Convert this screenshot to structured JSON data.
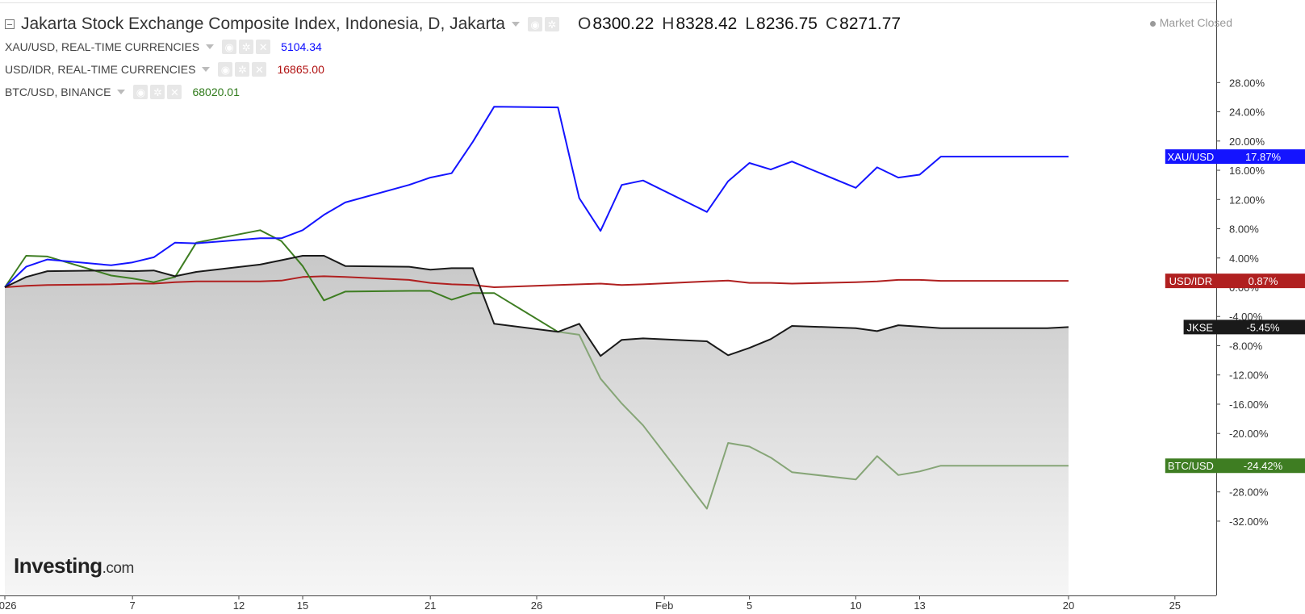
{
  "header": {
    "title": "Jakarta Stock Exchange Composite Index, Indonesia, D, Jakarta",
    "ohlc": [
      {
        "k": "O",
        "v": "8300.22"
      },
      {
        "k": "H",
        "v": "8328.42"
      },
      {
        "k": "L",
        "v": "8236.75"
      },
      {
        "k": "C",
        "v": "8271.77"
      }
    ],
    "market_status": "Market Closed"
  },
  "legend": [
    {
      "name": "XAU/USD, REAL-TIME CURRENCIES",
      "value": "5104.34",
      "color": "#0a0aff"
    },
    {
      "name": "USD/IDR, REAL-TIME CURRENCIES",
      "value": "16865.00",
      "color": "#b01010"
    },
    {
      "name": "BTC/USD, BINANCE",
      "value": "68020.01",
      "color": "#2f7a1a"
    }
  ],
  "logo": {
    "brand": "Investing",
    "suffix": ".com"
  },
  "colors": {
    "xau": "#1414ff",
    "usdidr": "#b02020",
    "btc_early": "#3e7d22",
    "btc_late": "#86a577",
    "jkse": "#1a1a1a",
    "axis": "#444444",
    "area_top": "#c8c8c8",
    "area_bottom": "#f6f6f6"
  },
  "chart_data": {
    "type": "line",
    "x_tick_labels": [
      {
        "label": "2026",
        "day": 0
      },
      {
        "label": "7",
        "day": 6
      },
      {
        "label": "12",
        "day": 11
      },
      {
        "label": "15",
        "day": 14
      },
      {
        "label": "21",
        "day": 20
      },
      {
        "label": "26",
        "day": 25
      },
      {
        "label": "Feb",
        "day": 31
      },
      {
        "label": "5",
        "day": 35
      },
      {
        "label": "10",
        "day": 40
      },
      {
        "label": "13",
        "day": 43
      },
      {
        "label": "20",
        "day": 50
      },
      {
        "label": "25",
        "day": 55
      }
    ],
    "xlim": [
      0,
      60
    ],
    "ylim": [
      -33,
      31
    ],
    "y_ticks": [
      28,
      24,
      20,
      16,
      12,
      8,
      4,
      0,
      -4,
      -8,
      -12,
      -16,
      -20,
      -24,
      -28,
      -32
    ],
    "y_tick_suffix": "%",
    "x": [
      0,
      1,
      2,
      5,
      6,
      7,
      8,
      9,
      12,
      13,
      14,
      15,
      16,
      19,
      20,
      21,
      22,
      23,
      26,
      27,
      28,
      29,
      30,
      33,
      34,
      35,
      36,
      37,
      40,
      41,
      42,
      43,
      44,
      47,
      48,
      49,
      50
    ],
    "series": [
      {
        "name": "JKSE",
        "label": "JKSE",
        "value_label": "-5.45%",
        "fill": true,
        "values": [
          0.0,
          1.4,
          2.2,
          2.3,
          2.2,
          2.3,
          1.5,
          2.1,
          3.1,
          3.7,
          4.3,
          4.3,
          2.9,
          2.8,
          2.4,
          2.6,
          2.6,
          -5.0,
          -6.1,
          -5.0,
          -9.4,
          -7.2,
          -7.0,
          -7.4,
          -9.3,
          -8.3,
          -7.1,
          -5.3,
          -5.6,
          -6.0,
          -5.2,
          -5.4,
          -5.6,
          -5.6,
          -5.6,
          -5.6,
          -5.45
        ]
      },
      {
        "name": "XAU/USD",
        "label": "XAU/USD",
        "value_label": "17.87%",
        "values": [
          0.0,
          2.8,
          3.8,
          3.0,
          3.4,
          4.1,
          6.1,
          6.0,
          6.7,
          6.7,
          7.8,
          9.9,
          11.6,
          14.0,
          15.0,
          15.6,
          19.9,
          24.7,
          24.6,
          12.2,
          7.7,
          14.0,
          14.6,
          10.3,
          14.5,
          17.0,
          16.1,
          17.2,
          13.6,
          16.4,
          15.0,
          15.4,
          17.87,
          17.87,
          17.87,
          17.87,
          17.87
        ]
      },
      {
        "name": "USD/IDR",
        "label": "USD/IDR",
        "value_label": "0.87%",
        "values": [
          0.0,
          0.2,
          0.3,
          0.4,
          0.5,
          0.5,
          0.7,
          0.8,
          0.8,
          0.9,
          1.4,
          1.5,
          1.4,
          1.0,
          0.6,
          0.4,
          0.3,
          0.0,
          0.3,
          0.4,
          0.5,
          0.3,
          0.4,
          0.8,
          0.9,
          0.6,
          0.6,
          0.5,
          0.7,
          0.8,
          1.0,
          1.0,
          0.87,
          0.87,
          0.87,
          0.87,
          0.87
        ]
      },
      {
        "name": "BTC/USD",
        "label": "BTC/USD",
        "value_label": "-24.42%",
        "values": [
          0.0,
          4.3,
          4.2,
          1.6,
          1.2,
          0.7,
          1.4,
          6.1,
          7.8,
          6.3,
          2.9,
          -1.8,
          -0.6,
          -0.5,
          -0.5,
          -1.7,
          -0.8,
          -0.8,
          -6.1,
          -6.5,
          -12.5,
          -15.9,
          -18.9,
          -30.3,
          -21.3,
          -21.8,
          -23.3,
          -25.3,
          -26.3,
          -23.1,
          -25.7,
          -25.2,
          -24.42,
          -24.42,
          -24.42,
          -24.42,
          -24.42
        ]
      }
    ]
  }
}
